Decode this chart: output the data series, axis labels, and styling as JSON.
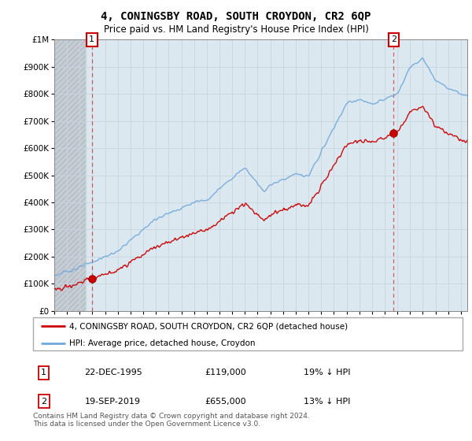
{
  "title": "4, CONINGSBY ROAD, SOUTH CROYDON, CR2 6QP",
  "subtitle": "Price paid vs. HM Land Registry's House Price Index (HPI)",
  "ylim": [
    0,
    1000000
  ],
  "yticks": [
    0,
    100000,
    200000,
    300000,
    400000,
    500000,
    600000,
    700000,
    800000,
    900000,
    1000000
  ],
  "legend_line1": "4, CONINGSBY ROAD, SOUTH CROYDON, CR2 6QP (detached house)",
  "legend_line2": "HPI: Average price, detached house, Croydon",
  "point1_date": "22-DEC-1995",
  "point1_price": "£119,000",
  "point1_hpi": "19% ↓ HPI",
  "point2_date": "19-SEP-2019",
  "point2_price": "£655,000",
  "point2_hpi": "13% ↓ HPI",
  "footer": "Contains HM Land Registry data © Crown copyright and database right 2024.\nThis data is licensed under the Open Government Licence v3.0.",
  "hpi_color": "#6fa8dc",
  "sale_color": "#cc0000",
  "grid_color": "#c8d4e0",
  "bg_color": "#dce8f0",
  "hatch_bg": "#c8d0d8",
  "sale1_x": 1995.96,
  "sale1_y": 119000,
  "sale2_x": 2019.71,
  "sale2_y": 655000,
  "xlim_left": 1993.0,
  "xlim_right": 2025.5
}
